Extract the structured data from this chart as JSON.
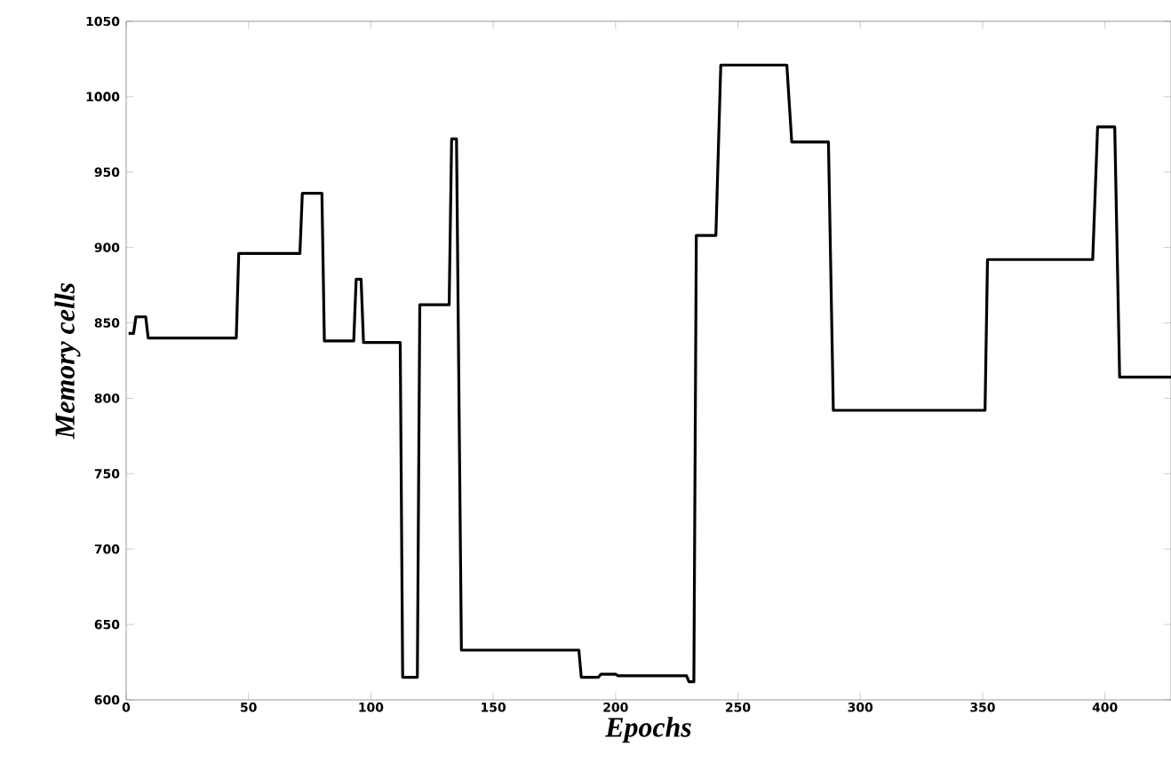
{
  "chart_data": {
    "type": "line",
    "xlabel": "Epochs",
    "ylabel": "Memory cells",
    "xlim": [
      0,
      427
    ],
    "ylim": [
      600,
      1050
    ],
    "xticks": [
      0,
      50,
      100,
      150,
      200,
      250,
      300,
      350,
      400
    ],
    "yticks": [
      600,
      650,
      700,
      750,
      800,
      850,
      900,
      950,
      1000,
      1050
    ],
    "grid": false,
    "series": [
      {
        "color": "#000000",
        "x": [
          1,
          3,
          4,
          8,
          9,
          45,
          46,
          71,
          72,
          80,
          81,
          93,
          94,
          96,
          97,
          112,
          113,
          119,
          120,
          132,
          133,
          135,
          137,
          185,
          186,
          193,
          194,
          200,
          201,
          229,
          230,
          232,
          233,
          241,
          243,
          270,
          272,
          287,
          289,
          351,
          352,
          395,
          397,
          404,
          406,
          427
        ],
        "values": [
          843,
          843,
          854,
          854,
          840,
          840,
          896,
          896,
          936,
          936,
          838,
          838,
          879,
          879,
          837,
          837,
          615,
          615,
          862,
          862,
          972,
          972,
          633,
          633,
          615,
          615,
          617,
          617,
          616,
          616,
          612,
          612,
          908,
          908,
          1021,
          1021,
          970,
          970,
          792,
          792,
          892,
          892,
          980,
          980,
          814,
          814
        ]
      }
    ]
  }
}
